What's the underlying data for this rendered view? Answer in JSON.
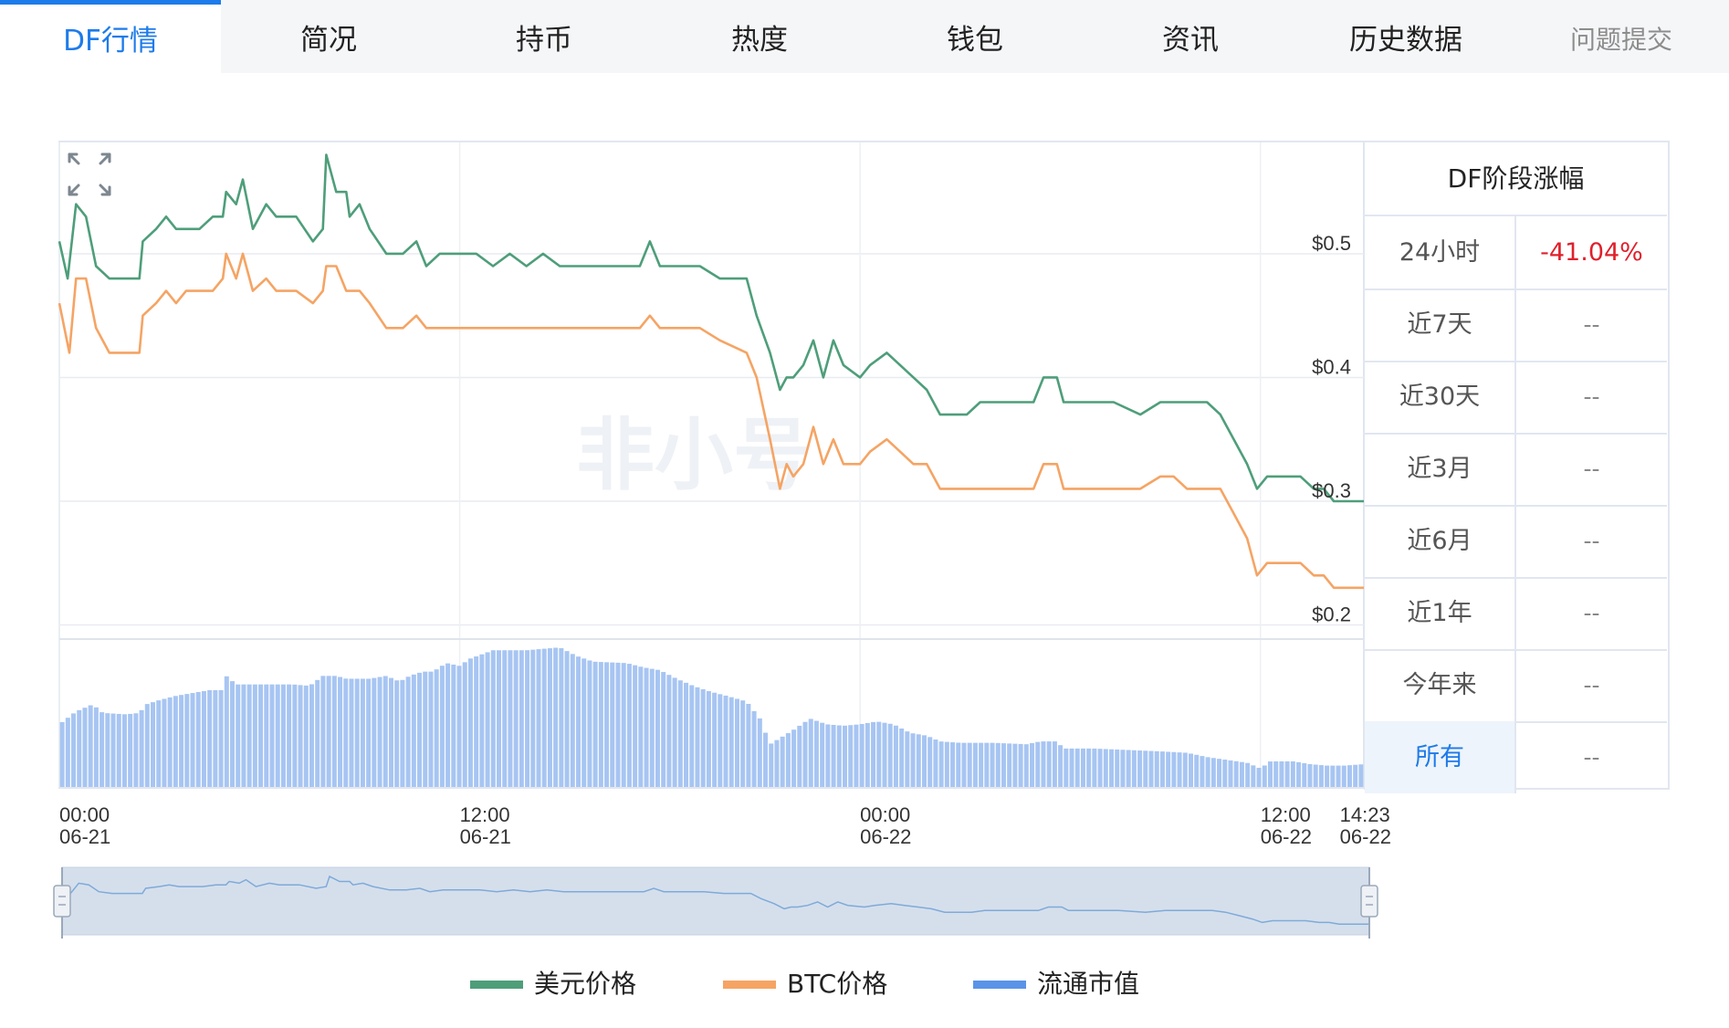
{
  "tabs": [
    {
      "label": "DF行情",
      "active": true
    },
    {
      "label": "简况",
      "active": false
    },
    {
      "label": "持币",
      "active": false
    },
    {
      "label": "热度",
      "active": false
    },
    {
      "label": "钱包",
      "active": false
    },
    {
      "label": "资讯",
      "active": false
    },
    {
      "label": "历史数据",
      "active": false
    },
    {
      "label": "问题提交",
      "active": false
    }
  ],
  "watermark": "非小号",
  "performance": {
    "title": "DF阶段涨幅",
    "rows": [
      {
        "label": "24小时",
        "value": "-41.04%"
      },
      {
        "label": "近7天",
        "value": "--"
      },
      {
        "label": "近30天",
        "value": "--"
      },
      {
        "label": "近3月",
        "value": "--"
      },
      {
        "label": "近6月",
        "value": "--"
      },
      {
        "label": "近1年",
        "value": "--"
      },
      {
        "label": "今年来",
        "value": "--"
      },
      {
        "label": "所有",
        "value": "--"
      }
    ]
  },
  "legend": [
    {
      "label": "美元价格",
      "color": "#4e9e7a"
    },
    {
      "label": "BTC价格",
      "color": "#f5a464"
    },
    {
      "label": "流通市值",
      "color": "#5b93e8"
    }
  ],
  "chart_data": {
    "type": "line",
    "y_axis": {
      "ticks": [
        "$0.5",
        "$0.4",
        "$0.3",
        "$0.2"
      ],
      "tick_values": [
        0.5,
        0.4,
        0.3,
        0.2
      ],
      "ylim": [
        0.19,
        0.59
      ]
    },
    "x_axis": {
      "ticks": [
        {
          "time": "00:00",
          "date": "06-21"
        },
        {
          "time": "12:00",
          "date": "06-21"
        },
        {
          "time": "00:00",
          "date": "06-22"
        },
        {
          "time": "12:00",
          "date": "06-22"
        },
        {
          "time": "14:23",
          "date": "06-22"
        }
      ],
      "tick_hours": [
        0,
        12,
        24,
        36,
        38.38
      ],
      "xlim_hours": [
        0,
        39.1
      ]
    },
    "series": [
      {
        "name": "美元价格",
        "color": "#4e9e7a",
        "points": [
          [
            0,
            0.51
          ],
          [
            0.25,
            0.48
          ],
          [
            0.5,
            0.54
          ],
          [
            0.8,
            0.53
          ],
          [
            1.1,
            0.49
          ],
          [
            1.5,
            0.48
          ],
          [
            2.0,
            0.48
          ],
          [
            2.4,
            0.48
          ],
          [
            2.5,
            0.51
          ],
          [
            2.9,
            0.52
          ],
          [
            3.2,
            0.53
          ],
          [
            3.5,
            0.52
          ],
          [
            3.8,
            0.52
          ],
          [
            4.2,
            0.52
          ],
          [
            4.6,
            0.53
          ],
          [
            4.9,
            0.53
          ],
          [
            5.0,
            0.55
          ],
          [
            5.3,
            0.54
          ],
          [
            5.5,
            0.56
          ],
          [
            5.8,
            0.52
          ],
          [
            6.2,
            0.54
          ],
          [
            6.5,
            0.53
          ],
          [
            7.0,
            0.53
          ],
          [
            7.1,
            0.53
          ],
          [
            7.6,
            0.51
          ],
          [
            7.9,
            0.52
          ],
          [
            8.0,
            0.58
          ],
          [
            8.3,
            0.55
          ],
          [
            8.6,
            0.55
          ],
          [
            8.7,
            0.53
          ],
          [
            9.0,
            0.54
          ],
          [
            9.3,
            0.52
          ],
          [
            9.8,
            0.5
          ],
          [
            10.0,
            0.5
          ],
          [
            10.3,
            0.5
          ],
          [
            10.7,
            0.51
          ],
          [
            11.0,
            0.49
          ],
          [
            11.4,
            0.5
          ],
          [
            12.0,
            0.5
          ],
          [
            12.5,
            0.5
          ],
          [
            13.0,
            0.49
          ],
          [
            13.5,
            0.5
          ],
          [
            14.0,
            0.49
          ],
          [
            14.5,
            0.5
          ],
          [
            15.0,
            0.49
          ],
          [
            15.6,
            0.49
          ],
          [
            16.0,
            0.49
          ],
          [
            16.5,
            0.49
          ],
          [
            17.0,
            0.49
          ],
          [
            17.4,
            0.49
          ],
          [
            17.7,
            0.51
          ],
          [
            18.0,
            0.49
          ],
          [
            18.6,
            0.49
          ],
          [
            19.2,
            0.49
          ],
          [
            19.8,
            0.48
          ],
          [
            20.6,
            0.48
          ],
          [
            20.9,
            0.45
          ],
          [
            21.3,
            0.42
          ],
          [
            21.6,
            0.39
          ],
          [
            21.8,
            0.4
          ],
          [
            22.0,
            0.4
          ],
          [
            22.3,
            0.41
          ],
          [
            22.6,
            0.43
          ],
          [
            22.9,
            0.4
          ],
          [
            23.2,
            0.43
          ],
          [
            23.5,
            0.41
          ],
          [
            24.0,
            0.4
          ],
          [
            24.3,
            0.41
          ],
          [
            24.8,
            0.42
          ],
          [
            25.2,
            0.41
          ],
          [
            25.6,
            0.4
          ],
          [
            26.0,
            0.39
          ],
          [
            26.4,
            0.37
          ],
          [
            26.8,
            0.37
          ],
          [
            27.2,
            0.37
          ],
          [
            27.6,
            0.38
          ],
          [
            28.2,
            0.38
          ],
          [
            28.8,
            0.38
          ],
          [
            29.2,
            0.38
          ],
          [
            29.5,
            0.4
          ],
          [
            29.9,
            0.4
          ],
          [
            30.1,
            0.38
          ],
          [
            30.6,
            0.38
          ],
          [
            31.0,
            0.38
          ],
          [
            31.6,
            0.38
          ],
          [
            32.4,
            0.37
          ],
          [
            33.0,
            0.38
          ],
          [
            33.4,
            0.38
          ],
          [
            33.8,
            0.38
          ],
          [
            34.4,
            0.38
          ],
          [
            34.8,
            0.37
          ],
          [
            35.2,
            0.35
          ],
          [
            35.6,
            0.33
          ],
          [
            35.9,
            0.31
          ],
          [
            36.2,
            0.32
          ],
          [
            36.8,
            0.32
          ],
          [
            37.2,
            0.32
          ],
          [
            37.6,
            0.31
          ],
          [
            37.9,
            0.31
          ],
          [
            38.2,
            0.3
          ],
          [
            38.6,
            0.3
          ],
          [
            39.1,
            0.3
          ]
        ]
      },
      {
        "name": "BTC价格",
        "color": "#f5a464",
        "points": [
          [
            0,
            0.46
          ],
          [
            0.3,
            0.42
          ],
          [
            0.5,
            0.48
          ],
          [
            0.8,
            0.48
          ],
          [
            1.1,
            0.44
          ],
          [
            1.5,
            0.42
          ],
          [
            2.0,
            0.42
          ],
          [
            2.4,
            0.42
          ],
          [
            2.5,
            0.45
          ],
          [
            2.9,
            0.46
          ],
          [
            3.2,
            0.47
          ],
          [
            3.5,
            0.46
          ],
          [
            3.8,
            0.47
          ],
          [
            4.2,
            0.47
          ],
          [
            4.6,
            0.47
          ],
          [
            4.9,
            0.48
          ],
          [
            5.0,
            0.5
          ],
          [
            5.3,
            0.48
          ],
          [
            5.5,
            0.5
          ],
          [
            5.8,
            0.47
          ],
          [
            6.2,
            0.48
          ],
          [
            6.5,
            0.47
          ],
          [
            7.0,
            0.47
          ],
          [
            7.1,
            0.47
          ],
          [
            7.6,
            0.46
          ],
          [
            7.9,
            0.47
          ],
          [
            8.0,
            0.49
          ],
          [
            8.3,
            0.49
          ],
          [
            8.6,
            0.47
          ],
          [
            8.7,
            0.47
          ],
          [
            9.0,
            0.47
          ],
          [
            9.3,
            0.46
          ],
          [
            9.8,
            0.44
          ],
          [
            10.0,
            0.44
          ],
          [
            10.3,
            0.44
          ],
          [
            10.7,
            0.45
          ],
          [
            11.0,
            0.44
          ],
          [
            11.4,
            0.44
          ],
          [
            12.0,
            0.44
          ],
          [
            12.5,
            0.44
          ],
          [
            13.0,
            0.44
          ],
          [
            13.5,
            0.44
          ],
          [
            14.0,
            0.44
          ],
          [
            14.5,
            0.44
          ],
          [
            15.0,
            0.44
          ],
          [
            15.6,
            0.44
          ],
          [
            16.0,
            0.44
          ],
          [
            16.5,
            0.44
          ],
          [
            17.0,
            0.44
          ],
          [
            17.4,
            0.44
          ],
          [
            17.7,
            0.45
          ],
          [
            18.0,
            0.44
          ],
          [
            18.6,
            0.44
          ],
          [
            19.2,
            0.44
          ],
          [
            19.8,
            0.43
          ],
          [
            20.6,
            0.42
          ],
          [
            20.9,
            0.4
          ],
          [
            21.3,
            0.35
          ],
          [
            21.6,
            0.31
          ],
          [
            21.8,
            0.33
          ],
          [
            22.0,
            0.32
          ],
          [
            22.3,
            0.33
          ],
          [
            22.6,
            0.36
          ],
          [
            22.9,
            0.33
          ],
          [
            23.2,
            0.35
          ],
          [
            23.5,
            0.33
          ],
          [
            24.0,
            0.33
          ],
          [
            24.3,
            0.34
          ],
          [
            24.8,
            0.35
          ],
          [
            25.2,
            0.34
          ],
          [
            25.6,
            0.33
          ],
          [
            26.0,
            0.33
          ],
          [
            26.4,
            0.31
          ],
          [
            26.8,
            0.31
          ],
          [
            27.2,
            0.31
          ],
          [
            27.6,
            0.31
          ],
          [
            28.2,
            0.31
          ],
          [
            28.8,
            0.31
          ],
          [
            29.2,
            0.31
          ],
          [
            29.5,
            0.33
          ],
          [
            29.9,
            0.33
          ],
          [
            30.1,
            0.31
          ],
          [
            30.6,
            0.31
          ],
          [
            31.0,
            0.31
          ],
          [
            31.6,
            0.31
          ],
          [
            32.4,
            0.31
          ],
          [
            33.0,
            0.32
          ],
          [
            33.4,
            0.32
          ],
          [
            33.8,
            0.31
          ],
          [
            34.4,
            0.31
          ],
          [
            34.8,
            0.31
          ],
          [
            35.2,
            0.29
          ],
          [
            35.6,
            0.27
          ],
          [
            35.9,
            0.24
          ],
          [
            36.2,
            0.25
          ],
          [
            36.8,
            0.25
          ],
          [
            37.2,
            0.25
          ],
          [
            37.6,
            0.24
          ],
          [
            37.9,
            0.24
          ],
          [
            38.2,
            0.23
          ],
          [
            38.6,
            0.23
          ],
          [
            39.1,
            0.23
          ]
        ]
      }
    ],
    "volume": {
      "name": "流通市值",
      "color": "#a7c5f2",
      "envelope": [
        [
          0,
          0.44
        ],
        [
          0.5,
          0.53
        ],
        [
          1.0,
          0.58
        ],
        [
          1.3,
          0.52
        ],
        [
          2.0,
          0.51
        ],
        [
          2.4,
          0.52
        ],
        [
          2.6,
          0.58
        ],
        [
          3.0,
          0.61
        ],
        [
          3.5,
          0.64
        ],
        [
          4.0,
          0.66
        ],
        [
          4.5,
          0.68
        ],
        [
          4.9,
          0.68
        ],
        [
          5.0,
          0.78
        ],
        [
          5.3,
          0.72
        ],
        [
          5.7,
          0.72
        ],
        [
          6.0,
          0.72
        ],
        [
          7.0,
          0.72
        ],
        [
          7.5,
          0.71
        ],
        [
          7.9,
          0.78
        ],
        [
          8.3,
          0.78
        ],
        [
          8.6,
          0.76
        ],
        [
          9.0,
          0.76
        ],
        [
          9.3,
          0.76
        ],
        [
          9.8,
          0.78
        ],
        [
          10.2,
          0.74
        ],
        [
          10.5,
          0.78
        ],
        [
          10.9,
          0.81
        ],
        [
          11.2,
          0.81
        ],
        [
          11.6,
          0.87
        ],
        [
          12.0,
          0.85
        ],
        [
          12.3,
          0.9
        ],
        [
          13.0,
          0.96
        ],
        [
          14.0,
          0.96
        ],
        [
          15.0,
          0.98
        ],
        [
          15.5,
          0.92
        ],
        [
          16.0,
          0.88
        ],
        [
          17.0,
          0.87
        ],
        [
          17.5,
          0.84
        ],
        [
          18.0,
          0.82
        ],
        [
          18.5,
          0.76
        ],
        [
          19.0,
          0.71
        ],
        [
          19.5,
          0.67
        ],
        [
          20.0,
          0.64
        ],
        [
          20.6,
          0.6
        ],
        [
          21.0,
          0.48
        ],
        [
          21.3,
          0.3
        ],
        [
          22.0,
          0.4
        ],
        [
          22.5,
          0.48
        ],
        [
          23.0,
          0.44
        ],
        [
          23.5,
          0.43
        ],
        [
          24.0,
          0.44
        ],
        [
          24.5,
          0.46
        ],
        [
          25.0,
          0.44
        ],
        [
          25.5,
          0.38
        ],
        [
          26.0,
          0.36
        ],
        [
          26.4,
          0.32
        ],
        [
          27.0,
          0.31
        ],
        [
          28.0,
          0.31
        ],
        [
          29.0,
          0.3
        ],
        [
          29.4,
          0.32
        ],
        [
          29.9,
          0.32
        ],
        [
          30.1,
          0.27
        ],
        [
          31.0,
          0.27
        ],
        [
          32.0,
          0.26
        ],
        [
          33.0,
          0.25
        ],
        [
          33.8,
          0.24
        ],
        [
          34.4,
          0.21
        ],
        [
          35.0,
          0.19
        ],
        [
          35.6,
          0.17
        ],
        [
          36.0,
          0.13
        ],
        [
          36.3,
          0.18
        ],
        [
          37.0,
          0.18
        ],
        [
          37.5,
          0.16
        ],
        [
          38.0,
          0.15
        ],
        [
          38.5,
          0.15
        ],
        [
          39.1,
          0.16
        ]
      ]
    }
  }
}
